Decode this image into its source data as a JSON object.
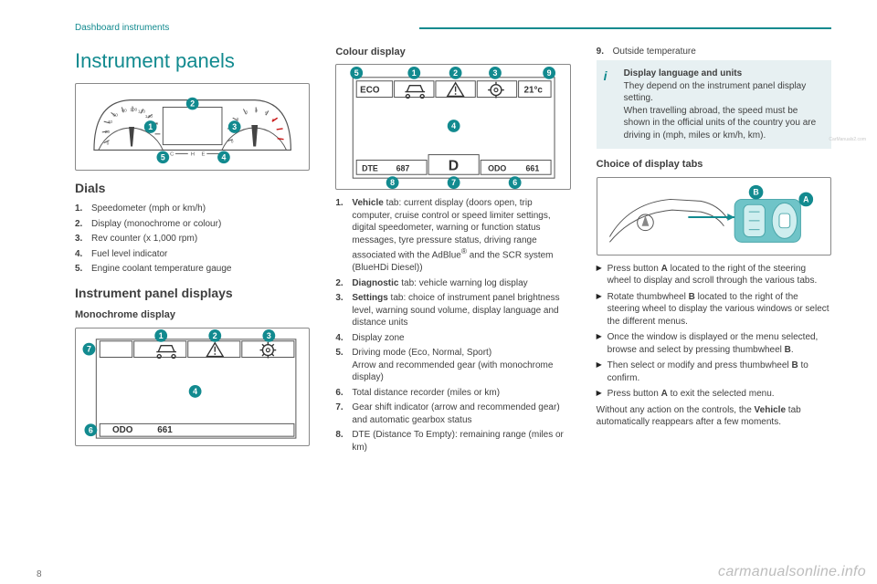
{
  "colors": {
    "teal": "#128a8f",
    "body": "#3f3f3f",
    "light": "#6f6f6f",
    "box_bg": "#e7f0f2",
    "figure_border": "#888888",
    "watermark": "#bdbdbd",
    "red": "#c91818"
  },
  "page_number": "8",
  "breadcrumb": "Dashboard instruments",
  "watermark": "carmanualsonline.info",
  "small_mark": "CarManuals2.com",
  "col1": {
    "title": "Instrument panels",
    "dials_heading": "Dials",
    "dials": [
      {
        "n": "1.",
        "t": "Speedometer (mph or km/h)"
      },
      {
        "n": "2.",
        "t": "Display (monochrome or colour)"
      },
      {
        "n": "3.",
        "t": "Rev counter (x 1,000 rpm)"
      },
      {
        "n": "4.",
        "t": "Fuel level indicator"
      },
      {
        "n": "5.",
        "t": "Engine coolant temperature gauge"
      }
    ],
    "displays_heading": "Instrument panel displays",
    "mono_heading": "Monochrome display",
    "fig1": {
      "callouts": [
        "1",
        "2",
        "3",
        "4",
        "5"
      ],
      "letters": {
        "c": "C",
        "h": "H",
        "e": "E",
        "f": "F"
      }
    },
    "fig2": {
      "callouts": [
        "1",
        "2",
        "3",
        "4",
        "6",
        "7"
      ],
      "odo_label": "ODO",
      "odo_value": "661"
    }
  },
  "col2": {
    "colour_heading": "Colour display",
    "fig3": {
      "callouts": [
        "1",
        "2",
        "3",
        "4",
        "5",
        "6",
        "7",
        "8",
        "9"
      ],
      "eco": "ECO",
      "temp": "21°c",
      "dte_label": "DTE",
      "dte_value": "687",
      "d": "D",
      "odo_label": "ODO",
      "odo_value": "661"
    },
    "list": [
      {
        "n": "1.",
        "t_html": "<b>Vehicle</b> tab: current display (doors open, trip computer, cruise control or speed limiter settings, digital speedometer, warning or function status messages, tyre pressure status, driving range associated with the AdBlue<sup>®</sup> and the SCR system (BlueHDi Diesel))"
      },
      {
        "n": "2.",
        "t_html": "<b>Diagnostic</b> tab: vehicle warning log display"
      },
      {
        "n": "3.",
        "t_html": "<b>Settings</b> tab: choice of instrument panel brightness level, warning sound volume, display language and distance units"
      },
      {
        "n": "4.",
        "t_html": "Display zone"
      },
      {
        "n": "5.",
        "t_html": "Driving mode (Eco, Normal, Sport)<br>Arrow and recommended gear (with monochrome display)"
      },
      {
        "n": "6.",
        "t_html": "Total distance recorder (miles or km)"
      },
      {
        "n": "7.",
        "t_html": "Gear shift indicator (arrow and recommended gear) and automatic gearbox status"
      },
      {
        "n": "8.",
        "t_html": "DTE (Distance To Empty): remaining range (miles or km)"
      }
    ]
  },
  "col3": {
    "item9": {
      "n": "9.",
      "t": "Outside temperature"
    },
    "info_title": "Display language and units",
    "info_body1": "They depend on the instrument panel display setting.",
    "info_body2": "When travelling abroad, the speed must be shown in the official units of the country you are driving in (mph, miles or km/h, km).",
    "choice_heading": "Choice of display tabs",
    "fig4": {
      "a": "A",
      "b": "B"
    },
    "bullets": [
      "Press button <b>A</b> located to the right of the steering wheel to display and scroll through the various tabs.",
      "Rotate thumbwheel <b>B</b> located to the right of the steering wheel to display the various windows or select the different menus.",
      "Once the window is displayed or the menu selected, browse and select by pressing thumbwheel <b>B</b>.",
      "Then select or modify and press thumbwheel <b>B</b> to confirm.",
      "Press button <b>A</b> to exit the selected menu."
    ],
    "tail": "Without any action on the controls, the <b>Vehicle</b> tab automatically reappears after a few moments."
  }
}
